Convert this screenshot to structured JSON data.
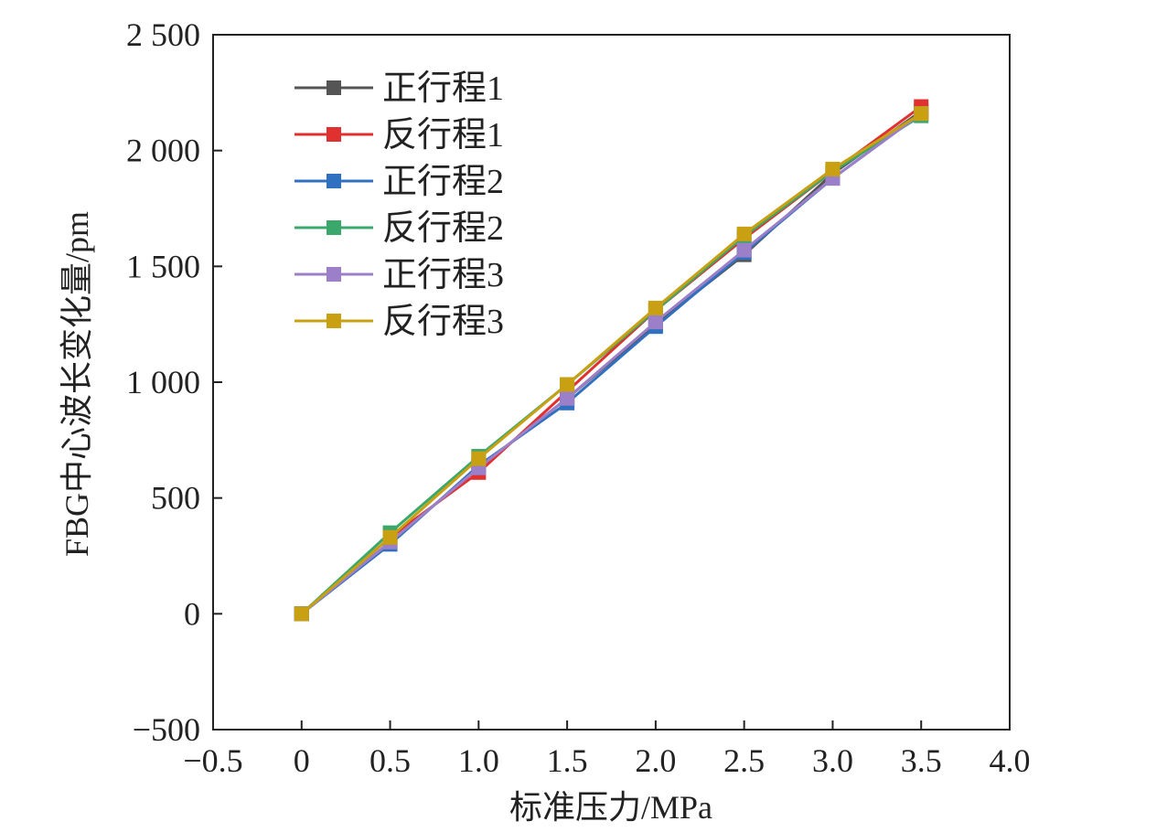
{
  "chart_data": {
    "type": "line",
    "xlabel": "标准压力/MPa",
    "ylabel": "FBG中心波长变化量/pm",
    "xlim": [
      -0.5,
      4.0
    ],
    "ylim": [
      -500,
      2500
    ],
    "x_ticks": [
      "−0.5",
      "0",
      "0.5",
      "1.0",
      "1.5",
      "2.0",
      "2.5",
      "3.0",
      "3.5",
      "4.0"
    ],
    "x_tick_values": [
      -0.5,
      0,
      0.5,
      1.0,
      1.5,
      2.0,
      2.5,
      3.0,
      3.5,
      4.0
    ],
    "y_ticks": [
      "−500",
      "0",
      "500",
      "1 000",
      "1 500",
      "2 000",
      "2 500"
    ],
    "y_tick_values": [
      -500,
      0,
      500,
      1000,
      1500,
      2000,
      2500
    ],
    "grid": false,
    "legend_position": "top-left",
    "x": [
      0,
      0.5,
      1.0,
      1.5,
      2.0,
      2.5,
      3.0,
      3.5
    ],
    "series": [
      {
        "name": "正行程1",
        "color": "#555555",
        "values": [
          0,
          310,
          630,
          930,
          1250,
          1550,
          1900,
          2170
        ]
      },
      {
        "name": "反行程1",
        "color": "#e03030",
        "values": [
          0,
          330,
          610,
          960,
          1310,
          1620,
          1910,
          2190
        ]
      },
      {
        "name": "正行程2",
        "color": "#3070c0",
        "values": [
          0,
          300,
          640,
          910,
          1240,
          1560,
          1880,
          2160
        ]
      },
      {
        "name": "反行程2",
        "color": "#3aa86a",
        "values": [
          0,
          350,
          680,
          990,
          1310,
          1630,
          1910,
          2150
        ]
      },
      {
        "name": "正行程3",
        "color": "#9b7fc8",
        "values": [
          0,
          310,
          630,
          930,
          1260,
          1570,
          1880,
          2160
        ]
      },
      {
        "name": "反行程3",
        "color": "#c9a012",
        "values": [
          0,
          330,
          670,
          990,
          1320,
          1640,
          1920,
          2160
        ]
      }
    ]
  }
}
